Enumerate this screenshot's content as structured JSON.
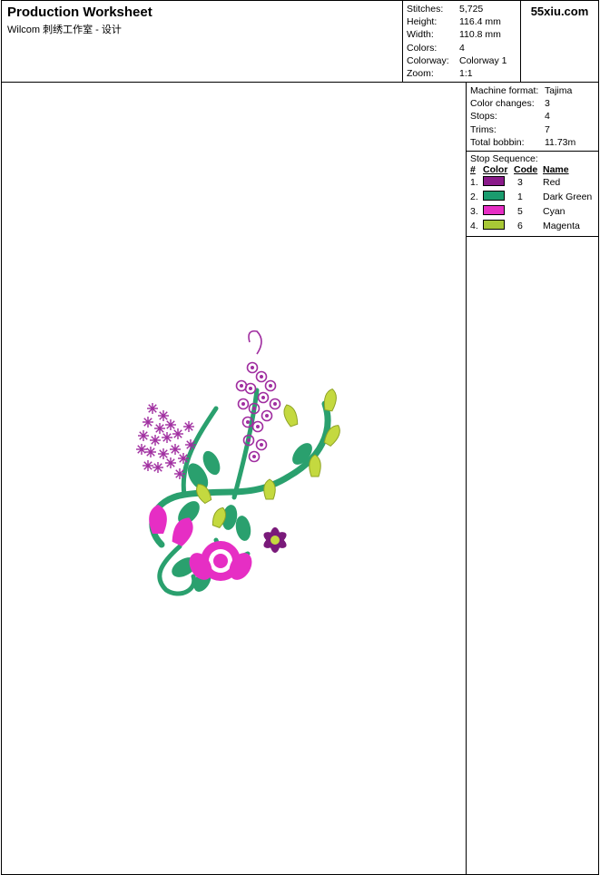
{
  "header": {
    "title": "Production Worksheet",
    "subtitle": "Wilcom 刺绣工作室 - 设计"
  },
  "logo": "55xiu.com",
  "stats": {
    "stitches_label": "Stitches:",
    "stitches": "5,725",
    "height_label": "Height:",
    "height": "116.4 mm",
    "width_label": "Width:",
    "width": "110.8 mm",
    "colors_label": "Colors:",
    "colors": "4",
    "colorway_label": "Colorway:",
    "colorway": "Colorway 1",
    "zoom_label": "Zoom:",
    "zoom": "1:1"
  },
  "machine": {
    "format_label": "Machine format:",
    "format": "Tajima",
    "changes_label": "Color changes:",
    "changes": "3",
    "stops_label": "Stops:",
    "stops": "4",
    "trims_label": "Trims:",
    "trims": "7",
    "bobbin_label": "Total bobbin:",
    "bobbin": "11.73m"
  },
  "sequence": {
    "title": "Stop Sequence:",
    "head_num": "#",
    "head_color": "Color",
    "head_code": "Code",
    "head_name": "Name",
    "rows": [
      {
        "n": "1.",
        "hex": "#8a1a8a",
        "code": "3",
        "name": "Red"
      },
      {
        "n": "2.",
        "hex": "#1a9c6e",
        "code": "1",
        "name": "Dark Green"
      },
      {
        "n": "3.",
        "hex": "#e62ec4",
        "code": "5",
        "name": "Cyan"
      },
      {
        "n": "4.",
        "hex": "#a8c836",
        "code": "6",
        "name": "Magenta"
      }
    ]
  },
  "art": {
    "purple": "#a02ea0",
    "darkpurple": "#7a1a7a",
    "green": "#2aa06e",
    "darkgreen": "#1c7a52",
    "magenta": "#e62ec4",
    "magenta_dark": "#b81f9a",
    "lime": "#c4d93f",
    "lime_dark": "#8fa326"
  }
}
